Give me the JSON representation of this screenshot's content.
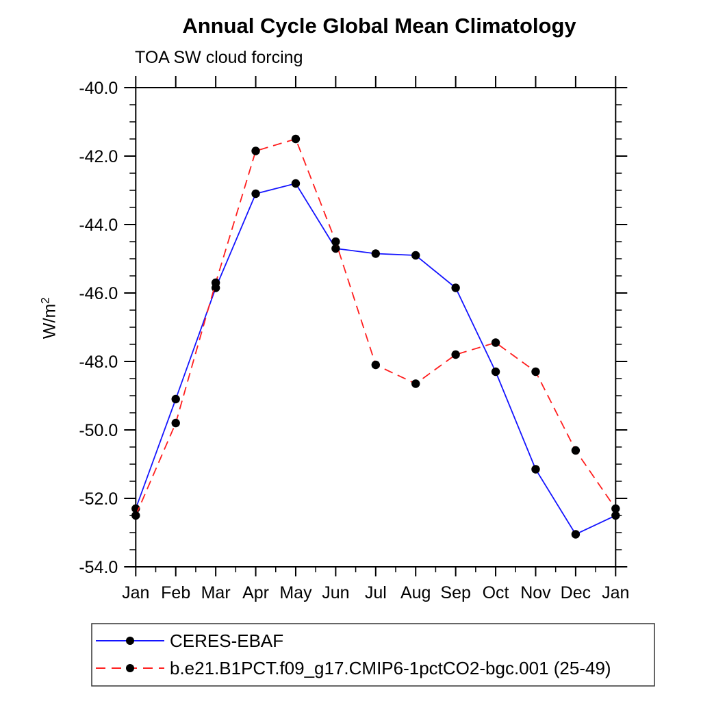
{
  "header": {
    "title": "Annual Cycle Global Mean Climatology",
    "subtitle": "TOA SW cloud forcing"
  },
  "axes": {
    "y_label": "W/m",
    "y_label_sup": "2"
  },
  "chart_data": {
    "type": "line",
    "title": "Annual Cycle Global Mean Climatology",
    "subtitle": "TOA SW cloud forcing",
    "ylabel": "W/m2",
    "xlabel": "",
    "x_categories": [
      "Jan",
      "Feb",
      "Mar",
      "Apr",
      "May",
      "Jun",
      "Jul",
      "Aug",
      "Sep",
      "Oct",
      "Nov",
      "Dec",
      "Jan"
    ],
    "ylim": [
      -54.0,
      -40.0
    ],
    "y_major_tick_step": 2.0,
    "y_minor_tick_step": 0.5,
    "y_tick_labels": [
      "-40.0",
      "-42.0",
      "-44.0",
      "-46.0",
      "-48.0",
      "-50.0",
      "-52.0",
      "-54.0"
    ],
    "grid": "off",
    "legend_position": "bottom-left-box",
    "marker": "filled-circle",
    "marker_color": "#000000",
    "series": [
      {
        "name": "CERES-EBAF",
        "color": "#1414ff",
        "line_style": "solid",
        "values": [
          -52.3,
          -49.1,
          -45.85,
          -43.1,
          -42.8,
          -44.7,
          -44.85,
          -44.9,
          -45.85,
          -48.3,
          -51.15,
          -53.05,
          -52.5
        ]
      },
      {
        "name": "b.e21.B1PCT.f09_g17.CMIP6-1pctCO2-bgc.001 (25-49)",
        "color": "#ff1e1e",
        "line_style": "dashed",
        "values": [
          -52.5,
          -49.8,
          -45.7,
          -41.85,
          -41.5,
          -44.5,
          -48.1,
          -48.65,
          -47.8,
          -47.45,
          -48.3,
          -50.6,
          -52.3
        ]
      }
    ]
  }
}
